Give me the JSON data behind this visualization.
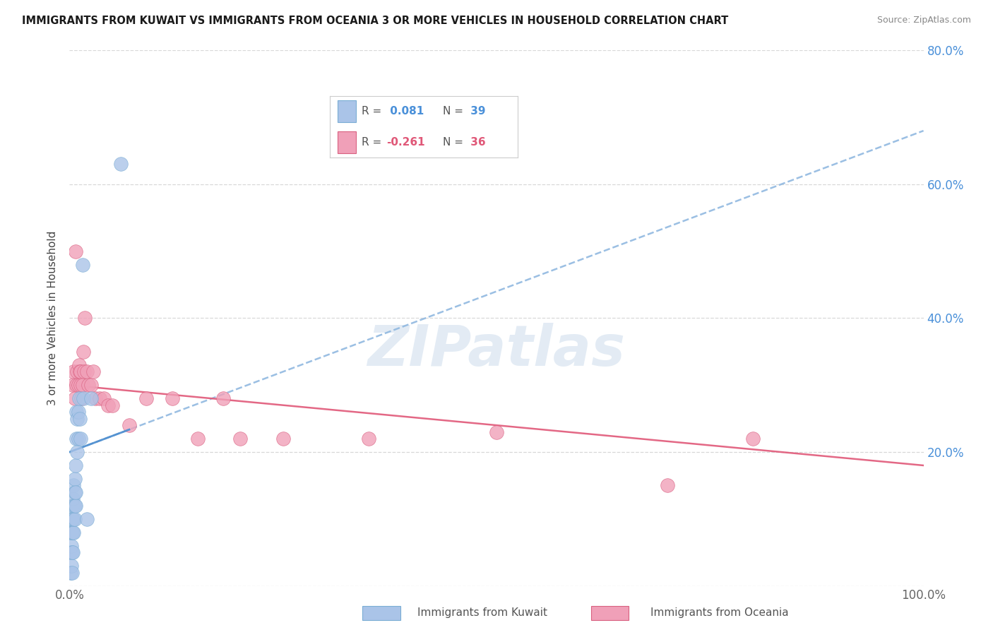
{
  "title": "IMMIGRANTS FROM KUWAIT VS IMMIGRANTS FROM OCEANIA 3 OR MORE VEHICLES IN HOUSEHOLD CORRELATION CHART",
  "source": "Source: ZipAtlas.com",
  "ylabel": "3 or more Vehicles in Household",
  "xlim": [
    0.0,
    1.0
  ],
  "ylim": [
    0.0,
    0.8
  ],
  "xticks": [
    0.0,
    0.2,
    0.4,
    0.6,
    0.8,
    1.0
  ],
  "xticklabels": [
    "0.0%",
    "",
    "",
    "",
    "",
    "100.0%"
  ],
  "yticks": [
    0.0,
    0.2,
    0.4,
    0.6,
    0.8
  ],
  "yticklabels_right": [
    "",
    "20.0%",
    "40.0%",
    "60.0%",
    "80.0%"
  ],
  "kuwait_color": "#aac4e8",
  "kuwait_edge_color": "#7aadd4",
  "oceania_color": "#f0a0b8",
  "oceania_edge_color": "#d96080",
  "kuwait_R": 0.081,
  "kuwait_N": 39,
  "oceania_R": -0.261,
  "oceania_N": 36,
  "kuwait_solid_line_color": "#5090d0",
  "kuwait_dashed_line_color": "#90b8e0",
  "oceania_line_color": "#e05878",
  "background_color": "#ffffff",
  "grid_color": "#d8d8d8",
  "watermark": "ZIPatlas",
  "watermark_color": "#ccdcec",
  "kuwait_x": [
    0.001,
    0.001,
    0.002,
    0.002,
    0.002,
    0.003,
    0.003,
    0.003,
    0.003,
    0.003,
    0.004,
    0.004,
    0.004,
    0.004,
    0.005,
    0.005,
    0.005,
    0.005,
    0.006,
    0.006,
    0.006,
    0.006,
    0.007,
    0.007,
    0.007,
    0.008,
    0.008,
    0.009,
    0.009,
    0.01,
    0.01,
    0.011,
    0.012,
    0.013,
    0.015,
    0.016,
    0.02,
    0.025,
    0.06
  ],
  "kuwait_y": [
    0.02,
    0.05,
    0.03,
    0.06,
    0.08,
    0.02,
    0.05,
    0.08,
    0.1,
    0.12,
    0.05,
    0.08,
    0.1,
    0.13,
    0.08,
    0.1,
    0.12,
    0.15,
    0.1,
    0.12,
    0.14,
    0.16,
    0.12,
    0.14,
    0.18,
    0.22,
    0.26,
    0.2,
    0.25,
    0.22,
    0.26,
    0.28,
    0.25,
    0.22,
    0.48,
    0.28,
    0.1,
    0.28,
    0.63
  ],
  "oceania_x": [
    0.004,
    0.005,
    0.006,
    0.007,
    0.008,
    0.009,
    0.01,
    0.011,
    0.012,
    0.013,
    0.013,
    0.014,
    0.015,
    0.016,
    0.017,
    0.018,
    0.02,
    0.022,
    0.025,
    0.028,
    0.03,
    0.035,
    0.04,
    0.045,
    0.05,
    0.07,
    0.09,
    0.12,
    0.15,
    0.18,
    0.2,
    0.25,
    0.35,
    0.5,
    0.7,
    0.8
  ],
  "oceania_y": [
    0.3,
    0.32,
    0.28,
    0.5,
    0.3,
    0.32,
    0.3,
    0.33,
    0.32,
    0.3,
    0.32,
    0.28,
    0.3,
    0.35,
    0.32,
    0.4,
    0.32,
    0.3,
    0.3,
    0.32,
    0.28,
    0.28,
    0.28,
    0.27,
    0.27,
    0.24,
    0.28,
    0.28,
    0.22,
    0.28,
    0.22,
    0.22,
    0.22,
    0.23,
    0.15,
    0.22
  ],
  "legend_R1": "R =",
  "legend_V1": " 0.081",
  "legend_N1": "N =",
  "legend_NV1": " 39",
  "legend_R2": "R =",
  "legend_V2": "-0.261",
  "legend_N2": "N =",
  "legend_NV2": " 36"
}
